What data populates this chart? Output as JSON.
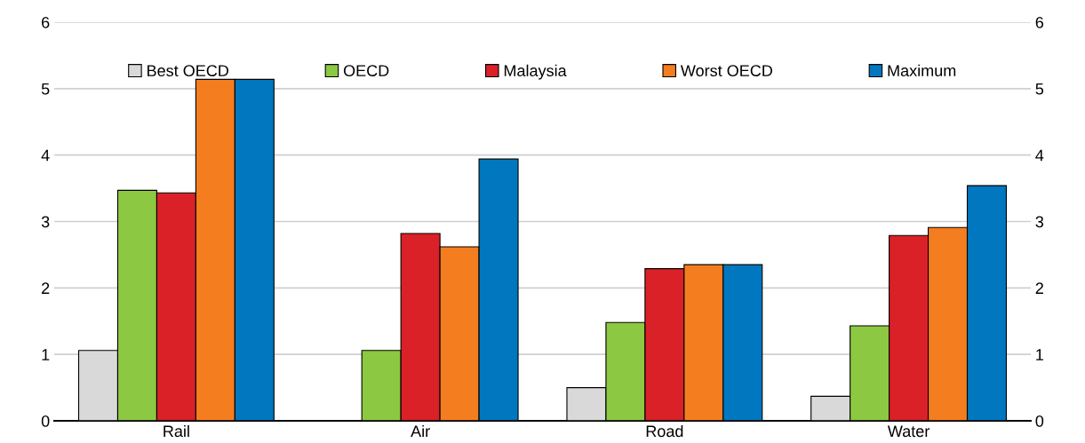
{
  "chart_data": {
    "type": "bar",
    "categories": [
      "Rail",
      "Air",
      "Road",
      "Water"
    ],
    "series": [
      {
        "name": "Best OECD",
        "color": "#d9d9d9",
        "values": [
          1.06,
          null,
          0.5,
          0.37
        ]
      },
      {
        "name": "OECD",
        "color": "#8cc841",
        "values": [
          3.47,
          1.06,
          1.48,
          1.43
        ]
      },
      {
        "name": "Malaysia",
        "color": "#da2128",
        "values": [
          3.43,
          2.82,
          2.29,
          2.79
        ]
      },
      {
        "name": "Worst OECD",
        "color": "#f47d20",
        "values": [
          5.14,
          2.62,
          2.35,
          2.91
        ]
      },
      {
        "name": "Maximum",
        "color": "#0077bf",
        "values": [
          5.14,
          3.94,
          2.35,
          3.54
        ]
      }
    ],
    "ylim": [
      0,
      6
    ],
    "yticks": [
      0,
      1,
      2,
      3,
      4,
      5,
      6
    ],
    "y2lim": [
      0,
      6
    ],
    "y2ticks": [
      0,
      1,
      2,
      3,
      4,
      5,
      6
    ],
    "grid": "y",
    "legend": "top"
  }
}
